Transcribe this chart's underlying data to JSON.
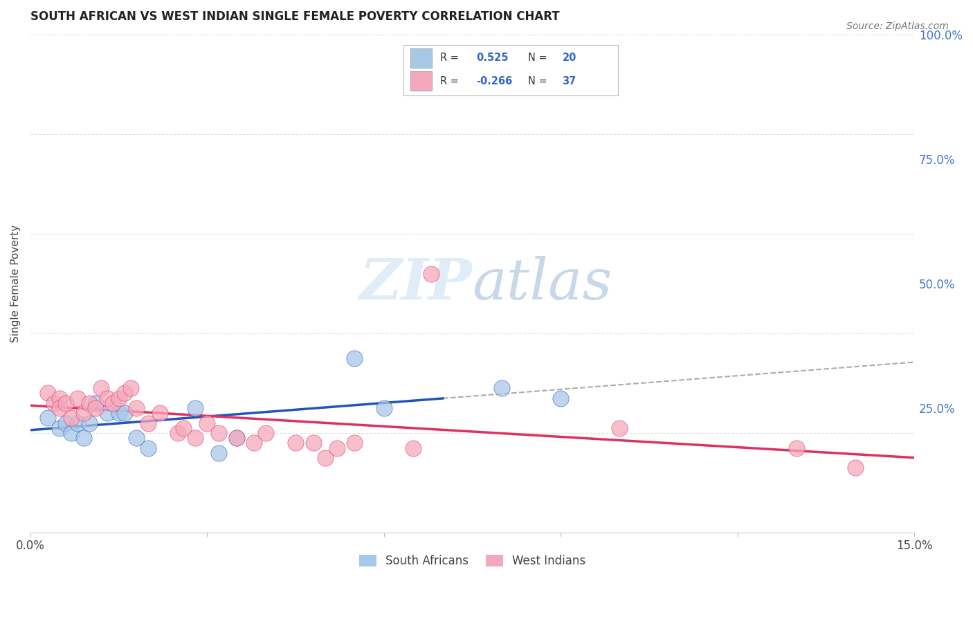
{
  "title": "SOUTH AFRICAN VS WEST INDIAN SINGLE FEMALE POVERTY CORRELATION CHART",
  "source": "Source: ZipAtlas.com",
  "ylabel": "Single Female Poverty",
  "xlim": [
    0.0,
    15.0
  ],
  "ylim": [
    0.0,
    100.0
  ],
  "yticks": [
    0,
    25,
    50,
    75,
    100
  ],
  "ytick_labels": [
    "",
    "25.0%",
    "50.0%",
    "75.0%",
    "100.0%"
  ],
  "xticks": [
    0,
    3,
    6,
    9,
    12,
    15
  ],
  "xtick_labels": [
    "0.0%",
    "",
    "",
    "",
    "",
    "15.0%"
  ],
  "sa_color": "#a8c8e8",
  "wi_color": "#f5a8bc",
  "sa_line_color": "#2255bb",
  "wi_line_color": "#e03060",
  "sa_R": 0.525,
  "sa_N": 20,
  "wi_R": -0.266,
  "wi_N": 37,
  "background": "#ffffff",
  "grid_color": "#dddddd",
  "sa_x": [
    0.3,
    0.5,
    0.6,
    0.7,
    0.8,
    0.9,
    1.0,
    1.1,
    1.3,
    1.5,
    1.6,
    1.8,
    2.0,
    2.8,
    3.2,
    3.5,
    5.5,
    6.0,
    8.0,
    9.0
  ],
  "sa_y": [
    23,
    21,
    22,
    20,
    22,
    19,
    22,
    26,
    24,
    24,
    24,
    19,
    17,
    25,
    16,
    19,
    35,
    25,
    29,
    27
  ],
  "wi_x": [
    0.3,
    0.4,
    0.5,
    0.5,
    0.6,
    0.7,
    0.8,
    0.9,
    1.0,
    1.1,
    1.2,
    1.3,
    1.4,
    1.5,
    1.6,
    1.7,
    1.8,
    2.0,
    2.2,
    2.5,
    2.6,
    2.8,
    3.0,
    3.2,
    3.5,
    3.8,
    4.0,
    4.5,
    4.8,
    5.0,
    5.2,
    5.5,
    6.5,
    6.8,
    10.0,
    13.0,
    14.0
  ],
  "wi_y": [
    28,
    26,
    27,
    25,
    26,
    23,
    27,
    24,
    26,
    25,
    29,
    27,
    26,
    27,
    28,
    29,
    25,
    22,
    24,
    20,
    21,
    19,
    22,
    20,
    19,
    18,
    20,
    18,
    18,
    15,
    17,
    18,
    17,
    52,
    21,
    17,
    13
  ]
}
